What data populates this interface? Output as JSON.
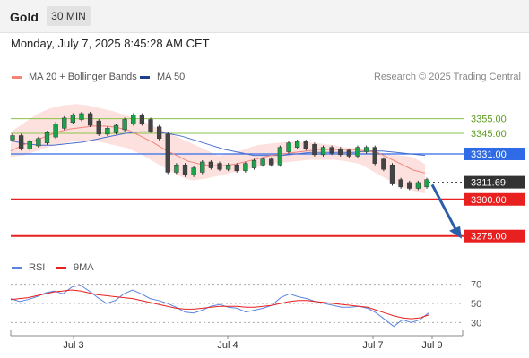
{
  "header": {
    "instrument": "Gold",
    "timeframe": "30 MIN"
  },
  "datetime": "Monday, July 7, 2025 8:45:28 AM CET",
  "legend": {
    "ma20": {
      "label": "MA 20 + Bollinger Bands",
      "color": "#f4847a"
    },
    "ma50": {
      "label": "MA 50",
      "color": "#4a6fd0"
    },
    "credit": "Research © 2025 Trading Central"
  },
  "rsi_legend": {
    "rsi": {
      "label": "RSI",
      "color": "#5b84df"
    },
    "ma9": {
      "label": "9MA",
      "color": "#e8201f"
    }
  },
  "chart_data": [
    {
      "type": "line",
      "panel": "price",
      "x_ticks": [
        "Jul 3",
        "Jul 4",
        "Jul 7",
        "Jul 9"
      ],
      "ylim": [
        3262,
        3378
      ],
      "levels": [
        {
          "label": "3355.00",
          "value": 3355.0,
          "role": "resistance",
          "color": "#8dc34a"
        },
        {
          "label": "3345.00",
          "value": 3345.0,
          "role": "resistance",
          "color": "#8dc34a"
        },
        {
          "label": "3331.00",
          "value": 3331.0,
          "role": "pivot",
          "color": "#2f6be6"
        },
        {
          "label": "3311.69",
          "value": 3311.69,
          "role": "last",
          "color": "#333333"
        },
        {
          "label": "3300.00",
          "value": 3300.0,
          "role": "support",
          "color": "#e8201f"
        },
        {
          "label": "3275.00",
          "value": 3275.0,
          "role": "support",
          "color": "#e8201f"
        }
      ],
      "price": [
        3342,
        3336,
        3338,
        3340,
        3344,
        3350,
        3354,
        3356,
        3357,
        3352,
        3346,
        3347,
        3349,
        3353,
        3356,
        3353,
        3348,
        3343,
        3320,
        3322,
        3318,
        3320,
        3324,
        3323,
        3322,
        3322,
        3321,
        3323,
        3325,
        3326,
        3325,
        3334,
        3337,
        3338,
        3336,
        3332,
        3334,
        3333,
        3332,
        3331,
        3334,
        3334,
        3326,
        3322,
        3312,
        3310,
        3309,
        3310,
        3312
      ],
      "ma20": [
        3333,
        3337,
        3340,
        3343,
        3346,
        3348,
        3349,
        3350,
        3350,
        3349,
        3347,
        3343,
        3339,
        3334,
        3330,
        3326,
        3324,
        3323,
        3323,
        3324,
        3326,
        3328,
        3330,
        3331,
        3332,
        3333,
        3334,
        3334,
        3334,
        3334,
        3333,
        3332,
        3328,
        3324,
        3320,
        3318
      ],
      "ma50": [
        3340,
        3338,
        3337,
        3337,
        3338,
        3339,
        3341,
        3343,
        3345,
        3346,
        3346,
        3345,
        3343,
        3340,
        3337,
        3334,
        3332,
        3330,
        3330,
        3330,
        3331,
        3332,
        3332,
        3332,
        3332,
        3333,
        3333,
        3332,
        3331,
        3330
      ],
      "bollinger_upper": [
        3346,
        3352,
        3358,
        3362,
        3364,
        3365,
        3364,
        3362,
        3360,
        3357,
        3354,
        3350,
        3346,
        3342,
        3338,
        3334,
        3330,
        3331,
        3334,
        3337,
        3338,
        3339,
        3339,
        3339,
        3338,
        3337,
        3335,
        3335,
        3333,
        3331,
        3330,
        3329,
        3324
      ],
      "bollinger_lower": [
        3329,
        3330,
        3333,
        3336,
        3338,
        3340,
        3340,
        3339,
        3337,
        3335,
        3331,
        3326,
        3321,
        3316,
        3313,
        3314,
        3316,
        3318,
        3320,
        3322,
        3324,
        3325,
        3326,
        3327,
        3327,
        3327,
        3326,
        3324,
        3319,
        3314,
        3309,
        3306,
        3304
      ],
      "forecast_arrow": {
        "from": 3310,
        "to": 3275
      }
    },
    {
      "type": "line",
      "panel": "rsi",
      "ylim": [
        22,
        78
      ],
      "y_ticks": [
        "70",
        "50",
        "30"
      ],
      "series": [
        {
          "name": "RSI",
          "values": [
            55,
            52,
            54,
            57,
            61,
            63,
            60,
            67,
            69,
            63,
            56,
            50,
            53,
            60,
            64,
            60,
            55,
            53,
            50,
            46,
            41,
            40,
            43,
            47,
            49,
            46,
            45,
            41,
            43,
            45,
            48,
            56,
            60,
            57,
            55,
            52,
            50,
            48,
            46,
            46,
            47,
            45,
            40,
            33,
            26,
            33,
            30,
            33,
            40
          ]
        },
        {
          "name": "9MA",
          "values": [
            54,
            55,
            56,
            58,
            60,
            62,
            63,
            64,
            63,
            61,
            59,
            58,
            57,
            56,
            55,
            53,
            51,
            49,
            47,
            45,
            44,
            44,
            45,
            46,
            47,
            47,
            47,
            46,
            46,
            47,
            48,
            50,
            52,
            53,
            53,
            52,
            51,
            50,
            49,
            48,
            47,
            46,
            43,
            40,
            37,
            35,
            34,
            35,
            38
          ]
        }
      ]
    }
  ]
}
